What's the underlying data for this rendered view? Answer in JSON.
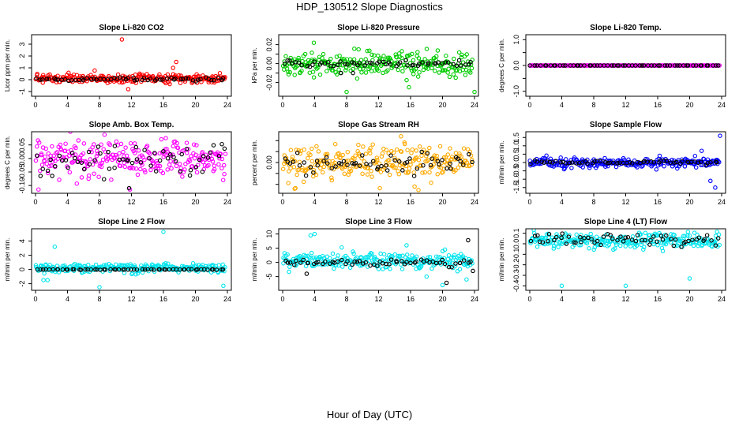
{
  "figure": {
    "title": "HDP_130512  Slope Diagnostics",
    "xlabel": "Hour of Day (UTC)"
  },
  "chart_data": [
    {
      "type": "scatter",
      "title": "Slope Li-820 CO2",
      "ylabel": "Licor ppm per min.",
      "xlim": [
        0,
        24
      ],
      "ylim": [
        -1.2,
        3.6
      ],
      "xticks": [
        0,
        4,
        8,
        12,
        16,
        20,
        24
      ],
      "yticks": [
        -1,
        0,
        1,
        2,
        3
      ],
      "ytick_labels": [
        "-1",
        "0",
        "1",
        "2",
        "3"
      ],
      "series": [
        {
          "color": "#ff0000",
          "center": 0.1,
          "spread": 0.18,
          "outliers": [
            [
              10.8,
              3.4
            ],
            [
              17.6,
              1.5
            ],
            [
              11.6,
              -0.8
            ],
            [
              17.2,
              1.0
            ]
          ]
        },
        {
          "color": "#000000",
          "center": 0.05,
          "spread": 0.08,
          "outliers": []
        }
      ]
    },
    {
      "type": "scatter",
      "title": "Slope Li-820 Pressure",
      "ylabel": "kPa per min.",
      "xlim": [
        0,
        24
      ],
      "ylim": [
        -0.032,
        0.028
      ],
      "xticks": [
        0,
        4,
        8,
        12,
        16,
        20,
        24
      ],
      "yticks": [
        -0.02,
        -0.01,
        0.0,
        0.01,
        0.02
      ],
      "ytick_labels": [
        "-0.02",
        "",
        "0.00",
        "",
        "0.02"
      ],
      "series": [
        {
          "color": "#00cc00",
          "center": 0.0,
          "spread": 0.006,
          "outliers": [
            [
              8,
              -0.03
            ],
            [
              3.9,
              0.022
            ],
            [
              15.8,
              -0.025
            ],
            [
              24,
              -0.03
            ],
            [
              1.5,
              -0.012
            ],
            [
              9.5,
              0.015
            ]
          ]
        },
        {
          "color": "#000000",
          "center": 0.0,
          "spread": 0.002,
          "outliers": [
            [
              7.3,
              -0.01
            ],
            [
              8.8,
              -0.01
            ]
          ]
        }
      ]
    },
    {
      "type": "scatter",
      "title": "Slope Li-820 Temp.",
      "ylabel": "degrees C per min.",
      "xlim": [
        0,
        24
      ],
      "ylim": [
        -1.1,
        1.1
      ],
      "xticks": [
        0,
        4,
        8,
        12,
        16,
        20,
        24
      ],
      "yticks": [
        -1.0,
        -0.5,
        0.0,
        0.5,
        1.0
      ],
      "ytick_labels": [
        "-1.0",
        "",
        "0.0",
        "",
        "1.0"
      ],
      "series": [
        {
          "color": "#ff00ff",
          "center": 0.0,
          "spread": 0.0,
          "outliers": []
        },
        {
          "color": "#000000",
          "center": 0.0,
          "spread": 0.0,
          "outliers": []
        }
      ]
    },
    {
      "type": "scatter",
      "title": "Slope Amb. Box Temp.",
      "ylabel": "degrees C per min.",
      "xlim": [
        0,
        24
      ],
      "ylim": [
        -0.12,
        0.09
      ],
      "xticks": [
        0,
        4,
        8,
        12,
        16,
        20,
        24
      ],
      "yticks": [
        -0.1,
        -0.05,
        0.0,
        0.05
      ],
      "ytick_labels": [
        "-0.10",
        "-0.05",
        "0.00",
        "0.05"
      ],
      "series": [
        {
          "color": "#ff00ff",
          "center": 0.0,
          "spread": 0.035,
          "outliers": [
            [
              11.8,
              -0.115
            ],
            [
              16.3,
              0.075
            ]
          ]
        },
        {
          "color": "#000000",
          "center": 0.0,
          "spread": 0.03,
          "outliers": [
            [
              11.7,
              -0.11
            ]
          ]
        }
      ]
    },
    {
      "type": "scatter",
      "title": "Slope Gas Stream RH",
      "ylabel": "percent per min.",
      "xlim": [
        0,
        24
      ],
      "ylim": [
        -0.65,
        0.65
      ],
      "xticks": [
        0,
        4,
        8,
        12,
        16,
        20,
        24
      ],
      "yticks": [
        -0.5,
        -0.25,
        0.0,
        0.25,
        0.5
      ],
      "ytick_labels": [
        "",
        "",
        "0.00",
        "",
        ""
      ],
      "series": [
        {
          "color": "#ffaa00",
          "center": 0.0,
          "spread": 0.2,
          "outliers": [
            [
              1.5,
              -0.6
            ],
            [
              14.8,
              0.6
            ],
            [
              16.5,
              -0.55
            ]
          ]
        },
        {
          "color": "#000000",
          "center": 0.0,
          "spread": 0.12,
          "outliers": []
        }
      ]
    },
    {
      "type": "scatter",
      "title": "Slope Sample Flow",
      "ylabel": "ml/min per min.",
      "xlim": [
        0,
        24
      ],
      "ylim": [
        -1.7,
        1.7
      ],
      "xticks": [
        0,
        4,
        8,
        12,
        16,
        20,
        24
      ],
      "yticks": [
        -1.5,
        -1,
        -0.5,
        0,
        0.5,
        1,
        1.5
      ],
      "ytick_labels": [
        "-1.5",
        "-1.0",
        "-0.5",
        "0.0",
        "0.5",
        "1.0",
        "1.5"
      ],
      "series": [
        {
          "color": "#0000ff",
          "center": 0.0,
          "spread": 0.15,
          "outliers": [
            [
              23.8,
              1.6
            ],
            [
              23.2,
              -1.5
            ],
            [
              22.6,
              -1.1
            ],
            [
              21.5,
              0.7
            ]
          ]
        },
        {
          "color": "#000000",
          "center": 0.0,
          "spread": 0.05,
          "outliers": []
        }
      ]
    },
    {
      "type": "scatter",
      "title": "Slope Line 2 Flow",
      "ylabel": "ml/min per min.",
      "xlim": [
        0,
        24
      ],
      "ylim": [
        -2.6,
        5.4
      ],
      "xticks": [
        0,
        4,
        8,
        12,
        16,
        20,
        24
      ],
      "yticks": [
        -2,
        0,
        2,
        4
      ],
      "ytick_labels": [
        "-2",
        "0",
        "2",
        "4"
      ],
      "series": [
        {
          "color": "#00e5ee",
          "center": 0.2,
          "spread": 0.3,
          "outliers": [
            [
              16,
              5.3
            ],
            [
              2.4,
              3.2
            ],
            [
              8,
              -2.5
            ],
            [
              23.5,
              -2.3
            ],
            [
              1,
              -1.5
            ],
            [
              1.5,
              -1.5
            ]
          ]
        },
        {
          "color": "#000000",
          "center": 0.0,
          "spread": 0.02,
          "outliers": []
        }
      ]
    },
    {
      "type": "scatter",
      "title": "Slope Line 3 Flow",
      "ylabel": "ml/min per min.",
      "xlim": [
        0,
        24
      ],
      "ylim": [
        -9,
        11
      ],
      "xticks": [
        0,
        4,
        8,
        12,
        16,
        20,
        24
      ],
      "yticks": [
        -5,
        0,
        5,
        10
      ],
      "ytick_labels": [
        "-5",
        "0",
        "5",
        "10"
      ],
      "series": [
        {
          "color": "#00e5ee",
          "center": 0.5,
          "spread": 1.5,
          "outliers": [
            [
              4,
              10
            ],
            [
              3.5,
              9.5
            ],
            [
              20,
              -8
            ],
            [
              23,
              -6
            ],
            [
              18,
              -5
            ],
            [
              15.5,
              6
            ]
          ]
        },
        {
          "color": "#000000",
          "center": 0.0,
          "spread": 0.6,
          "outliers": [
            [
              23.2,
              7.8
            ],
            [
              20.5,
              -7.2
            ],
            [
              3,
              -4
            ],
            [
              23.8,
              -3
            ]
          ]
        }
      ]
    },
    {
      "type": "scatter",
      "title": "Slope Line 4 (LT) Flow",
      "ylabel": "ml/min per min.",
      "xlim": [
        0,
        24
      ],
      "ylim": [
        -0.42,
        0.12
      ],
      "xticks": [
        0,
        4,
        8,
        12,
        16,
        20,
        24
      ],
      "yticks": [
        -0.4,
        -0.3,
        -0.2,
        -0.1,
        0.0,
        0.1
      ],
      "ytick_labels": [
        "-0.4",
        "-0.3",
        "-0.2",
        "-0.1",
        "0.0",
        "0.1"
      ],
      "series": [
        {
          "color": "#00e5ee",
          "center": 0.03,
          "spread": 0.035,
          "outliers": [
            [
              4,
              -0.4
            ],
            [
              12,
              -0.4
            ],
            [
              20,
              -0.33
            ]
          ]
        },
        {
          "color": "#000000",
          "center": 0.04,
          "spread": 0.03,
          "outliers": []
        }
      ]
    }
  ]
}
